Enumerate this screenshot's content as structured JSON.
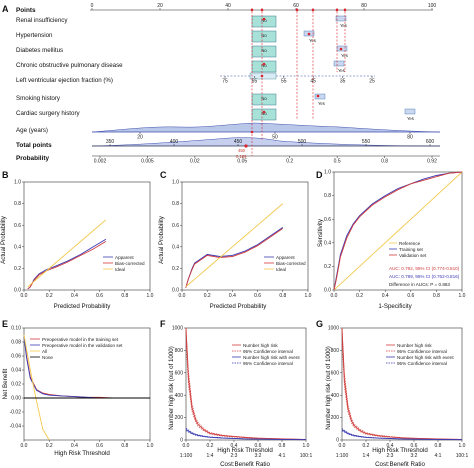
{
  "nomogram": {
    "panel": "A",
    "points_label": "Points",
    "points_ticks": [
      "0",
      "20",
      "40",
      "60",
      "80",
      "100"
    ],
    "rows": [
      {
        "label": "Renal insufficiency",
        "box_level": "No",
        "alt_level": "Yes"
      },
      {
        "label": "Hypertension",
        "box_level": "No",
        "alt_level": "Yes"
      },
      {
        "label": "Diabetes mellitus",
        "box_level": "No",
        "alt_level": "Yes"
      },
      {
        "label": "Chronic obstructive pulmonary disease",
        "box_level": "No",
        "alt_level": "Yes"
      },
      {
        "label": "Left ventricular ejection fraction (%)",
        "box_level": "",
        "alt_level": ""
      },
      {
        "label": "Smoking history",
        "box_level": "No",
        "alt_level": "Yes"
      },
      {
        "label": "Cardiac surgery history",
        "box_level": "No",
        "alt_level": "Yes"
      }
    ],
    "lvef_ticks": [
      "75",
      "65",
      "55",
      "45",
      "35",
      "25"
    ],
    "age_label": "Age (years)",
    "age_ticks": [
      "20",
      "50",
      "80"
    ],
    "total_label": "Total points",
    "total_ticks": [
      "350",
      "400",
      "450",
      "500",
      "550",
      "600"
    ],
    "total_marker": "450",
    "probability_label": "Probability",
    "prob_ticks": [
      "0.002",
      "0.005",
      "0.02",
      "0.05",
      "0.2",
      "0.5",
      "0.8",
      "0.92"
    ],
    "prob_marker": "0.109"
  },
  "calibration": [
    {
      "panel": "B",
      "xlabel": "Predicted Probability",
      "ylabel": "Actual Probability",
      "legend": [
        "Apparent",
        "Bias-corrected",
        "Ideal"
      ]
    },
    {
      "panel": "C",
      "xlabel": "Predicted Probability",
      "ylabel": "Actual Probability",
      "legend": [
        "Apparent",
        "Bias-corrected",
        "Ideal"
      ]
    }
  ],
  "roc": {
    "panel": "D",
    "xlabel": "1-Specificity",
    "ylabel": "Sensitivity",
    "legend": [
      "Reference",
      "Training set",
      "Validation set"
    ],
    "auc_train": "AUC: 0.792, 95% CI (0.774-0.810)",
    "auc_valid": "AUC: 0.789, 95% CI (0.762-0.816)",
    "diff": "Difference in AUCs: P = 0.863"
  },
  "dca": {
    "panel": "E",
    "xlabel": "High Risk Threshold",
    "ylabel": "Net Benefit",
    "legend": [
      "Preoperative model in the training set",
      "Preoperative model in the validation set",
      "All",
      "None"
    ]
  },
  "cic": [
    {
      "panel": "F",
      "xlabel": "High Risk Threshold",
      "x2label": "Cost:Benefit Ratio",
      "ylabel": "Number high risk (out of 1000)",
      "legend": [
        "Number high risk",
        "95% Confidence interval",
        "Number high risk with event",
        "95% Confidence interval"
      ]
    },
    {
      "panel": "G",
      "xlabel": "High Risk Threshold",
      "x2label": "Cost:Benefit Ratio",
      "ylabel": "Number high risk (out of 1000)",
      "legend": [
        "Number high risk",
        "95% Confidence interval",
        "Number high risk with event",
        "95% Confidence interval"
      ]
    }
  ],
  "chart_data": [
    {
      "type": "line",
      "title": "",
      "xlabel": "Predicted Probability",
      "ylabel": "Actual Probability",
      "xlim": [
        0,
        1
      ],
      "ylim": [
        0,
        1
      ],
      "xticks": [
        "0.0",
        "0.2",
        "0.4",
        "0.6",
        "0.8",
        "1.0"
      ],
      "yticks": [
        "0.0",
        "0.2",
        "0.4",
        "0.6",
        "0.8",
        "1.0"
      ],
      "x": [
        0.03,
        0.05,
        0.08,
        0.12,
        0.18,
        0.25,
        0.35,
        0.45,
        0.55,
        0.65
      ],
      "series": [
        {
          "name": "Apparent",
          "color": "#3b3bb3",
          "values": [
            0.01,
            0.03,
            0.1,
            0.15,
            0.19,
            0.22,
            0.27,
            0.33,
            0.4,
            0.47
          ]
        },
        {
          "name": "Bias-corrected",
          "color": "#d23c3c",
          "values": [
            0.01,
            0.03,
            0.09,
            0.14,
            0.18,
            0.21,
            0.26,
            0.32,
            0.38,
            0.45
          ]
        },
        {
          "name": "Ideal",
          "color": "#f2c94c",
          "values": [
            0.03,
            0.05,
            0.08,
            0.12,
            0.18,
            0.25,
            0.35,
            0.45,
            0.55,
            0.65
          ]
        }
      ]
    },
    {
      "type": "line",
      "title": "",
      "xlabel": "Predicted Probability",
      "ylabel": "Actual Probability",
      "xlim": [
        0,
        1
      ],
      "ylim": [
        0,
        1
      ],
      "xticks": [
        "0.0",
        "0.2",
        "0.4",
        "0.6",
        "0.8",
        "1.0"
      ],
      "yticks": [
        "0.0",
        "0.2",
        "0.4",
        "0.6",
        "0.8",
        "1.0"
      ],
      "x": [
        0.03,
        0.05,
        0.08,
        0.1,
        0.15,
        0.2,
        0.3,
        0.4,
        0.5,
        0.6,
        0.7,
        0.8
      ],
      "series": [
        {
          "name": "Apparent",
          "color": "#3b3bb3",
          "values": [
            0.02,
            0.1,
            0.2,
            0.25,
            0.29,
            0.33,
            0.31,
            0.32,
            0.36,
            0.42,
            0.5,
            0.58
          ]
        },
        {
          "name": "Bias-corrected",
          "color": "#d23c3c",
          "values": [
            0.02,
            0.1,
            0.19,
            0.24,
            0.28,
            0.32,
            0.3,
            0.31,
            0.35,
            0.41,
            0.49,
            0.57
          ]
        },
        {
          "name": "Ideal",
          "color": "#f2c94c",
          "values": [
            0.03,
            0.05,
            0.08,
            0.1,
            0.15,
            0.2,
            0.3,
            0.4,
            0.5,
            0.6,
            0.7,
            0.8
          ]
        }
      ]
    },
    {
      "type": "line",
      "title": "",
      "xlabel": "1-Specificity",
      "ylabel": "Sensitivity",
      "xlim": [
        0,
        1
      ],
      "ylim": [
        0,
        1
      ],
      "xticks": [
        "0.0",
        "0.2",
        "0.4",
        "0.6",
        "0.8",
        "1.0"
      ],
      "yticks": [
        "0.0",
        "0.2",
        "0.4",
        "0.6",
        "0.8",
        "1.0"
      ],
      "x": [
        0,
        0.02,
        0.05,
        0.1,
        0.15,
        0.2,
        0.3,
        0.4,
        0.5,
        0.6,
        0.7,
        0.8,
        0.9,
        1.0
      ],
      "series": [
        {
          "name": "Reference",
          "color": "#f2c94c",
          "values": [
            0,
            0.02,
            0.05,
            0.1,
            0.15,
            0.2,
            0.3,
            0.4,
            0.5,
            0.6,
            0.7,
            0.8,
            0.9,
            1.0
          ]
        },
        {
          "name": "Training set",
          "color": "#3b3bb3",
          "values": [
            0,
            0.12,
            0.3,
            0.46,
            0.56,
            0.63,
            0.73,
            0.8,
            0.86,
            0.9,
            0.94,
            0.97,
            0.99,
            1.0
          ]
        },
        {
          "name": "Validation set",
          "color": "#d23c3c",
          "values": [
            0,
            0.1,
            0.28,
            0.44,
            0.55,
            0.62,
            0.72,
            0.79,
            0.85,
            0.9,
            0.93,
            0.96,
            0.99,
            1.0
          ]
        }
      ]
    },
    {
      "type": "line",
      "title": "",
      "xlabel": "High Risk Threshold",
      "ylabel": "Net Benefit",
      "xlim": [
        0,
        1
      ],
      "ylim": [
        -0.06,
        0.1
      ],
      "xticks": [
        "0.0",
        "0.2",
        "0.4",
        "0.6",
        "0.8",
        "1.0"
      ],
      "yticks": [
        "-0.04",
        "-0.02",
        "0.00",
        "0.02",
        "0.04",
        "0.06",
        "0.08",
        "0.10"
      ],
      "x": [
        0,
        0.02,
        0.05,
        0.1,
        0.15,
        0.2,
        0.3,
        0.4,
        0.5,
        0.6,
        0.7,
        0.8,
        0.9,
        1.0
      ],
      "series": [
        {
          "name": "Preoperative model in the training set",
          "color": "#d23c3c",
          "values": [
            0.09,
            0.06,
            0.03,
            0.012,
            0.007,
            0.005,
            0.003,
            0.002,
            0.001,
            0.001,
            0.0,
            0.0,
            0.0,
            0.0
          ]
        },
        {
          "name": "Preoperative model in the validation set",
          "color": "#3b3bb3",
          "values": [
            0.088,
            0.058,
            0.028,
            0.011,
            0.006,
            0.004,
            0.003,
            0.002,
            0.001,
            0.0,
            0.0,
            0.0,
            0.0,
            0.0
          ]
        },
        {
          "name": "All",
          "color": "#f2c94c",
          "values": [
            0.09,
            0.07,
            0.04,
            -0.005,
            -0.045,
            -0.085,
            null,
            null,
            null,
            null,
            null,
            null,
            null,
            null
          ]
        },
        {
          "name": "None",
          "color": "#000000",
          "values": [
            0,
            0,
            0,
            0,
            0,
            0,
            0,
            0,
            0,
            0,
            0,
            0,
            0,
            0
          ]
        }
      ]
    },
    {
      "type": "line",
      "title": "",
      "xlabel": "High Risk Threshold",
      "ylabel": "Number high risk (out of 1000)",
      "xlim": [
        0,
        1
      ],
      "ylim": [
        0,
        1000
      ],
      "xticks": [
        "0.0",
        "0.2",
        "0.4",
        "0.6",
        "0.8",
        "1.0"
      ],
      "yticks": [
        "0",
        "200",
        "400",
        "600",
        "800",
        "1000"
      ],
      "x2ticks": [
        "1:100",
        "1:4",
        "2:3",
        "3:2",
        "4:1",
        "100:1"
      ],
      "x": [
        0,
        0.02,
        0.05,
        0.08,
        0.1,
        0.15,
        0.2,
        0.3,
        0.4,
        0.5,
        0.6,
        0.8,
        1.0
      ],
      "series": [
        {
          "name": "Number high risk",
          "color": "#d23c3c",
          "values": [
            1000,
            560,
            290,
            180,
            140,
            90,
            60,
            40,
            30,
            22,
            16,
            10,
            5
          ]
        },
        {
          "name": "Number high risk with event",
          "color": "#3b3bb3",
          "values": [
            95,
            80,
            60,
            48,
            42,
            32,
            25,
            18,
            14,
            10,
            8,
            5,
            3
          ]
        }
      ]
    },
    {
      "type": "line",
      "title": "",
      "xlabel": "High Risk Threshold",
      "ylabel": "Number high risk (out of 1000)",
      "xlim": [
        0,
        1
      ],
      "ylim": [
        0,
        1000
      ],
      "xticks": [
        "0.0",
        "0.2",
        "0.4",
        "0.6",
        "0.8",
        "1.0"
      ],
      "yticks": [
        "0",
        "200",
        "400",
        "600",
        "800",
        "1000"
      ],
      "x2ticks": [
        "1:100",
        "1:4",
        "2:3",
        "3:2",
        "4:1",
        "100:1"
      ],
      "x": [
        0,
        0.02,
        0.05,
        0.08,
        0.1,
        0.15,
        0.2,
        0.3,
        0.4,
        0.5,
        0.6,
        0.8,
        1.0
      ],
      "series": [
        {
          "name": "Number high risk",
          "color": "#d23c3c",
          "values": [
            1000,
            540,
            280,
            170,
            130,
            85,
            58,
            38,
            28,
            20,
            15,
            9,
            5
          ]
        },
        {
          "name": "Number high risk with event",
          "color": "#3b3bb3",
          "values": [
            92,
            78,
            58,
            46,
            40,
            30,
            24,
            17,
            13,
            10,
            7,
            5,
            3
          ]
        }
      ]
    }
  ]
}
